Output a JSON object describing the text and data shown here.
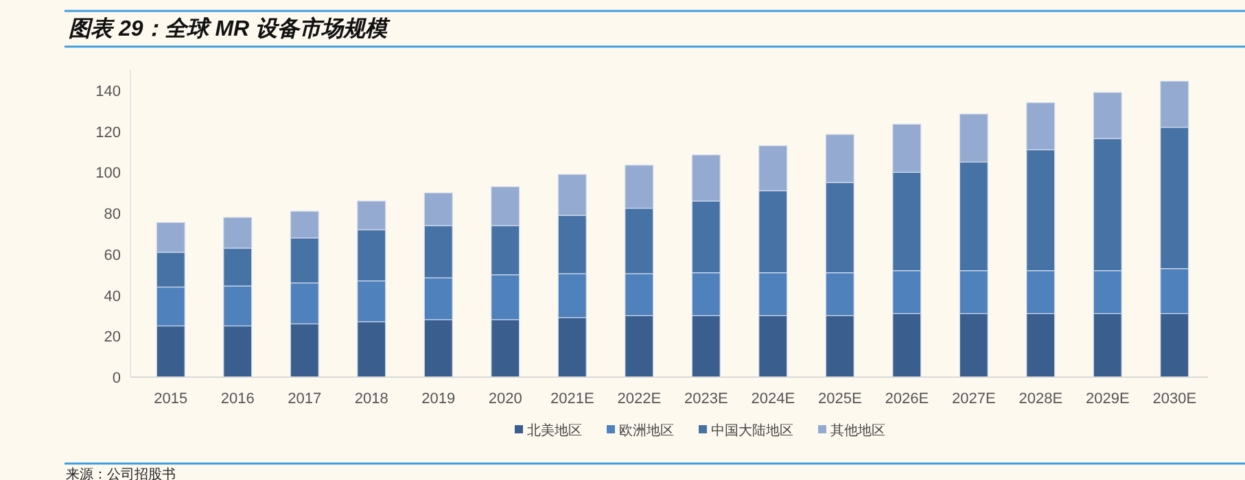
{
  "chart_data": {
    "type": "bar",
    "title": "图表 29：全球 MR 设备市场规模",
    "stacked": true,
    "categories": [
      "2015",
      "2016",
      "2017",
      "2018",
      "2019",
      "2020",
      "2021E",
      "2022E",
      "2023E",
      "2024E",
      "2025E",
      "2026E",
      "2027E",
      "2028E",
      "2029E",
      "2030E"
    ],
    "series": [
      {
        "name": "北美地区",
        "color": "#3a5f8f",
        "values": [
          25,
          25,
          26,
          27,
          28,
          28,
          29,
          30,
          30,
          30,
          30,
          31,
          31,
          31,
          31,
          31
        ]
      },
      {
        "name": "欧洲地区",
        "color": "#4f81bd",
        "values": [
          19,
          19.5,
          20,
          20,
          20.5,
          22,
          21.5,
          20.5,
          21,
          21,
          21,
          21,
          21,
          21,
          21,
          22
        ]
      },
      {
        "name": "中国大陆地区",
        "color": "#4672a6",
        "values": [
          17,
          18.5,
          22,
          25,
          25.5,
          24,
          28.5,
          32,
          35,
          40,
          44,
          48,
          53,
          59,
          64.5,
          69
        ]
      },
      {
        "name": "其他地区",
        "color": "#94aad0",
        "values": [
          14.5,
          15,
          13,
          14,
          16,
          19,
          20,
          21,
          22.5,
          22,
          23.5,
          23.5,
          23.5,
          23,
          22.5,
          22.5
        ]
      }
    ],
    "ylim": [
      0,
      150
    ],
    "yticks": [
      0,
      20,
      40,
      60,
      80,
      100,
      120,
      140
    ],
    "grid": false,
    "legend": "bottom",
    "annotations": [
      "来源：公司招股书"
    ]
  }
}
